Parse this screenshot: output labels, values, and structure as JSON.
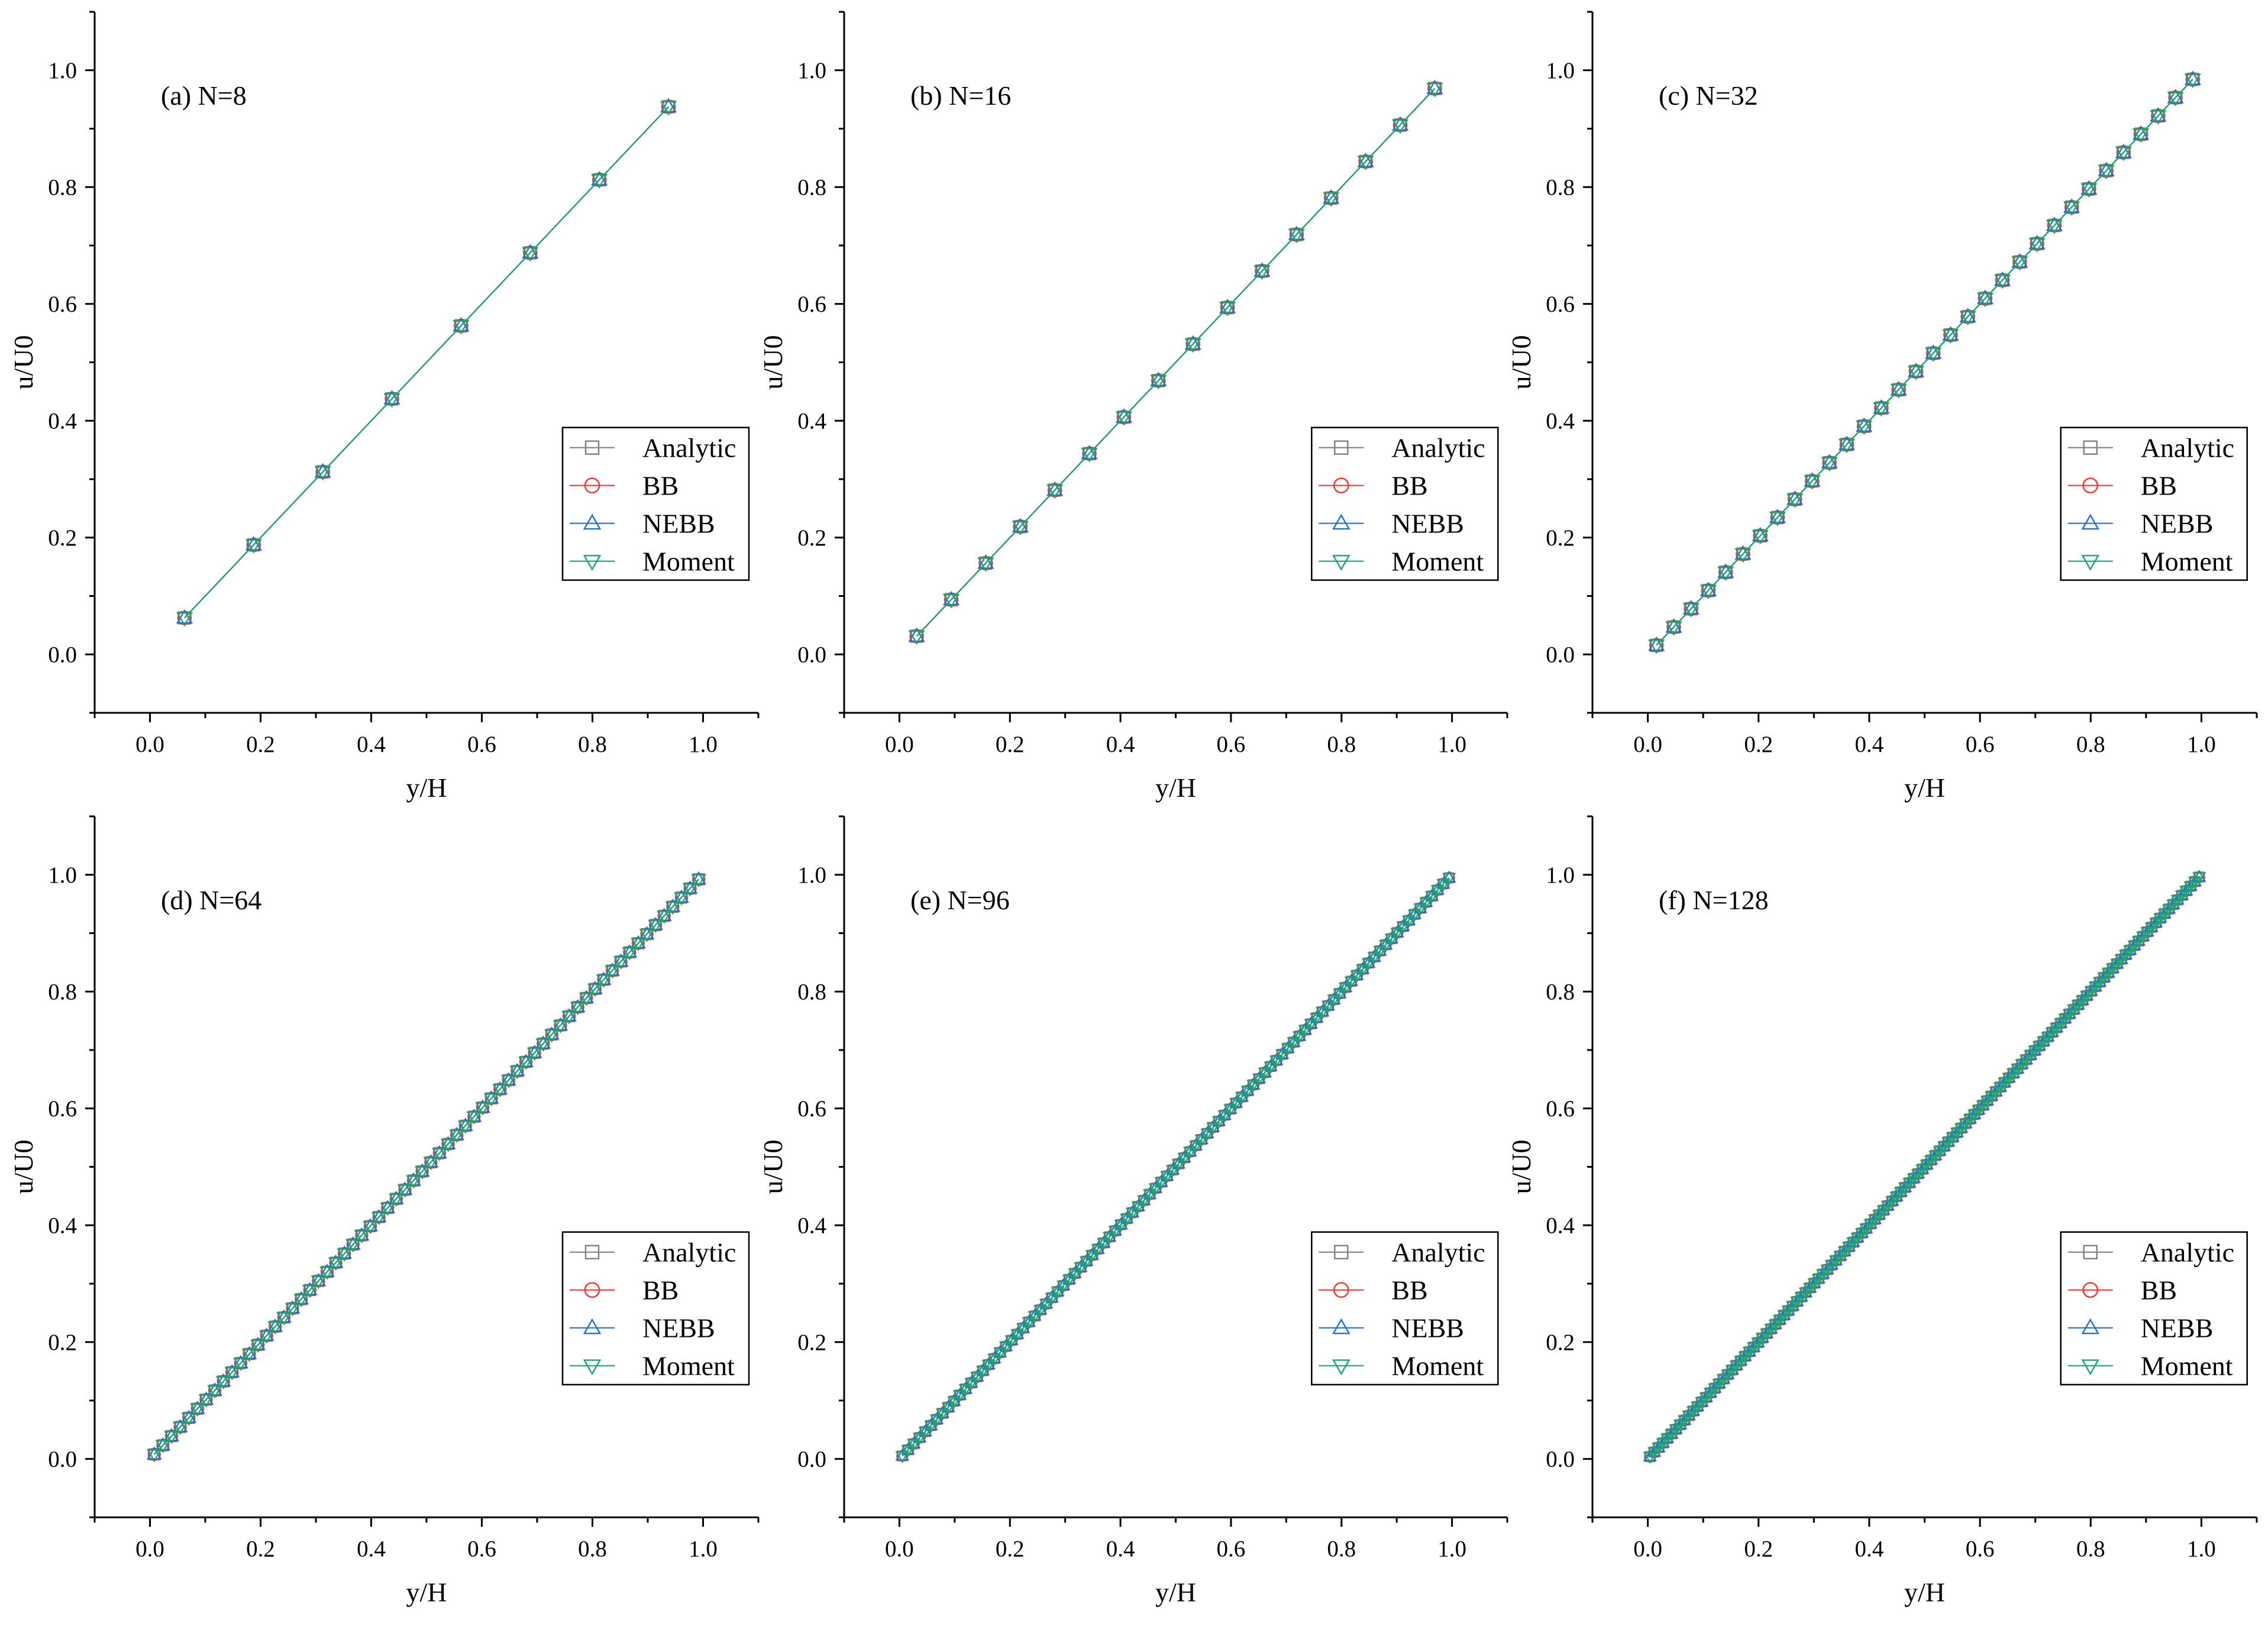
{
  "figure": {
    "colors": {
      "analytic": "#808080",
      "bb": "#ff3030",
      "nebb": "#1f6fe0",
      "moment": "#1aa86a",
      "axis": "#000000"
    }
  },
  "chart_data": [
    {
      "type": "line",
      "title": "(a) N=8",
      "xlabel": "y/H",
      "ylabel": "u/U0",
      "xlim": [
        -0.1,
        1.1
      ],
      "ylim": [
        -0.1,
        1.1
      ],
      "xticks": [
        "0.0",
        "0.2",
        "0.4",
        "0.6",
        "0.8",
        "1.0"
      ],
      "yticks": [
        "0.0",
        "0.2",
        "0.4",
        "0.6",
        "0.8",
        "1.0"
      ],
      "grid": false,
      "legend_position": "right-middle",
      "series": [
        {
          "name": "Analytic",
          "marker": "square"
        },
        {
          "name": "BB",
          "marker": "circle"
        },
        {
          "name": "NEBB",
          "marker": "triangle-up"
        },
        {
          "name": "Moment",
          "marker": "triangle-down"
        }
      ],
      "n": 8,
      "x_formula": "(i+0.5)/N",
      "y_formula": "u/U0 = y/H",
      "x_first": 0.0625,
      "x_last": 0.9375
    },
    {
      "type": "line",
      "title": "(b) N=16",
      "xlabel": "y/H",
      "ylabel": "u/U0",
      "xlim": [
        -0.1,
        1.1
      ],
      "ylim": [
        -0.1,
        1.1
      ],
      "xticks": [
        "0.0",
        "0.2",
        "0.4",
        "0.6",
        "0.8",
        "1.0"
      ],
      "yticks": [
        "0.0",
        "0.2",
        "0.4",
        "0.6",
        "0.8",
        "1.0"
      ],
      "grid": false,
      "legend_position": "right-middle",
      "series": [
        {
          "name": "Analytic",
          "marker": "square"
        },
        {
          "name": "BB",
          "marker": "circle"
        },
        {
          "name": "NEBB",
          "marker": "triangle-up"
        },
        {
          "name": "Moment",
          "marker": "triangle-down"
        }
      ],
      "n": 16,
      "x_formula": "(i+0.5)/N",
      "y_formula": "u/U0 = y/H",
      "x_first": 0.03125,
      "x_last": 0.96875
    },
    {
      "type": "line",
      "title": "(c) N=32",
      "xlabel": "y/H",
      "ylabel": "u/U0",
      "xlim": [
        -0.1,
        1.1
      ],
      "ylim": [
        -0.1,
        1.1
      ],
      "xticks": [
        "0.0",
        "0.2",
        "0.4",
        "0.6",
        "0.8",
        "1.0"
      ],
      "yticks": [
        "0.0",
        "0.2",
        "0.4",
        "0.6",
        "0.8",
        "1.0"
      ],
      "grid": false,
      "legend_position": "right-middle",
      "series": [
        {
          "name": "Analytic",
          "marker": "square"
        },
        {
          "name": "BB",
          "marker": "circle"
        },
        {
          "name": "NEBB",
          "marker": "triangle-up"
        },
        {
          "name": "Moment",
          "marker": "triangle-down"
        }
      ],
      "n": 32,
      "x_formula": "(i+0.5)/N",
      "y_formula": "u/U0 = y/H",
      "x_first": 0.015625,
      "x_last": 0.984375
    },
    {
      "type": "line",
      "title": "(d) N=64",
      "xlabel": "y/H",
      "ylabel": "u/U0",
      "xlim": [
        -0.1,
        1.1
      ],
      "ylim": [
        -0.1,
        1.1
      ],
      "xticks": [
        "0.0",
        "0.2",
        "0.4",
        "0.6",
        "0.8",
        "1.0"
      ],
      "yticks": [
        "0.0",
        "0.2",
        "0.4",
        "0.6",
        "0.8",
        "1.0"
      ],
      "grid": false,
      "legend_position": "right-middle",
      "series": [
        {
          "name": "Analytic",
          "marker": "square"
        },
        {
          "name": "BB",
          "marker": "circle"
        },
        {
          "name": "NEBB",
          "marker": "triangle-up"
        },
        {
          "name": "Moment",
          "marker": "triangle-down"
        }
      ],
      "n": 64,
      "x_formula": "(i+0.5)/N",
      "y_formula": "u/U0 = y/H",
      "x_first": 0.0078125,
      "x_last": 0.9921875
    },
    {
      "type": "line",
      "title": "(e) N=96",
      "xlabel": "y/H",
      "ylabel": "u/U0",
      "xlim": [
        -0.1,
        1.1
      ],
      "ylim": [
        -0.1,
        1.1
      ],
      "xticks": [
        "0.0",
        "0.2",
        "0.4",
        "0.6",
        "0.8",
        "1.0"
      ],
      "yticks": [
        "0.0",
        "0.2",
        "0.4",
        "0.6",
        "0.8",
        "1.0"
      ],
      "grid": false,
      "legend_position": "right-middle",
      "series": [
        {
          "name": "Analytic",
          "marker": "square"
        },
        {
          "name": "BB",
          "marker": "circle"
        },
        {
          "name": "NEBB",
          "marker": "triangle-up"
        },
        {
          "name": "Moment",
          "marker": "triangle-down"
        }
      ],
      "n": 96,
      "x_formula": "(i+0.5)/N",
      "y_formula": "u/U0 = y/H",
      "x_first": 0.0052,
      "x_last": 0.9948
    },
    {
      "type": "line",
      "title": "(f) N=128",
      "xlabel": "y/H",
      "ylabel": "u/U0",
      "xlim": [
        -0.1,
        1.1
      ],
      "ylim": [
        -0.1,
        1.1
      ],
      "xticks": [
        "0.0",
        "0.2",
        "0.4",
        "0.6",
        "0.8",
        "1.0"
      ],
      "yticks": [
        "0.0",
        "0.2",
        "0.4",
        "0.6",
        "0.8",
        "1.0"
      ],
      "grid": false,
      "legend_position": "right-middle",
      "series": [
        {
          "name": "Analytic",
          "marker": "square"
        },
        {
          "name": "BB",
          "marker": "circle"
        },
        {
          "name": "NEBB",
          "marker": "triangle-up"
        },
        {
          "name": "Moment",
          "marker": "triangle-down"
        }
      ],
      "n": 128,
      "x_formula": "(i+0.5)/N",
      "y_formula": "u/U0 = y/H",
      "x_first": 0.0039,
      "x_last": 0.9961
    }
  ]
}
